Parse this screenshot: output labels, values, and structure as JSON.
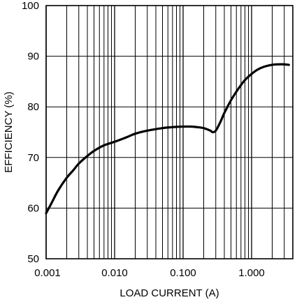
{
  "chart_data": {
    "type": "line",
    "title": "",
    "xlabel": "LOAD CURRENT (A)",
    "ylabel": "EFFICIENCY (%)",
    "x_scale": "log",
    "xlim": [
      0.001,
      4
    ],
    "ylim": [
      50,
      100
    ],
    "x_ticks": [
      {
        "value": 0.001,
        "label": "0.001"
      },
      {
        "value": 0.01,
        "label": "0.010"
      },
      {
        "value": 0.1,
        "label": "0.100"
      },
      {
        "value": 1,
        "label": "1.000"
      }
    ],
    "y_ticks": [
      {
        "value": 50,
        "label": "50"
      },
      {
        "value": 60,
        "label": "60"
      },
      {
        "value": 70,
        "label": "70"
      },
      {
        "value": 80,
        "label": "80"
      },
      {
        "value": 90,
        "label": "90"
      },
      {
        "value": 100,
        "label": "100"
      }
    ],
    "grid": true,
    "line_color": "#000000",
    "series": [
      {
        "x": [
          0.001,
          0.0012,
          0.0015,
          0.002,
          0.0025,
          0.003,
          0.004,
          0.005,
          0.007,
          0.01,
          0.015,
          0.02,
          0.03,
          0.05,
          0.07,
          0.1,
          0.13,
          0.16,
          0.2,
          0.25,
          0.27,
          0.3,
          0.35,
          0.4,
          0.5,
          0.6,
          0.7,
          0.8,
          1.0,
          1.2,
          1.5,
          2.0,
          2.5,
          3.0,
          3.5
        ],
        "y": [
          59.0,
          61.0,
          63.5,
          66.0,
          67.5,
          68.8,
          70.3,
          71.3,
          72.4,
          73.1,
          74.0,
          74.7,
          75.3,
          75.8,
          76.0,
          76.1,
          76.1,
          76.0,
          75.8,
          75.3,
          75.0,
          75.3,
          77.0,
          78.8,
          81.3,
          83.0,
          84.3,
          85.3,
          86.5,
          87.3,
          87.9,
          88.3,
          88.4,
          88.4,
          88.3
        ]
      }
    ]
  }
}
